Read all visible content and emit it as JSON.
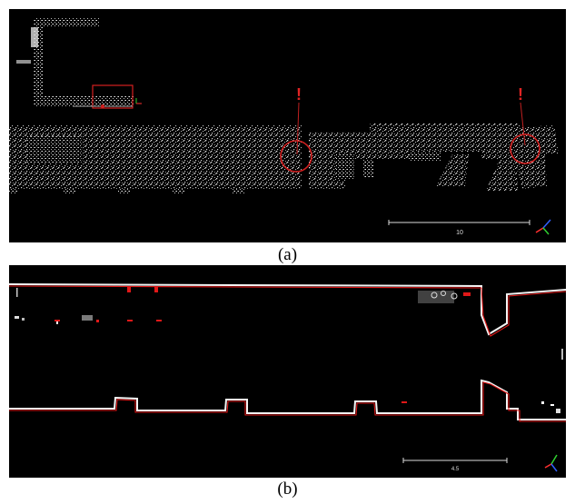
{
  "figure": {
    "captions": {
      "a": "(a)",
      "b": "(b)"
    },
    "panel_a": {
      "scale_bar_label": "10",
      "annotation_markers": [
        "!",
        "!"
      ],
      "colors": {
        "background": "#000000",
        "points": "#e6e6e6",
        "highlight": "#d42020",
        "axis_x": "#ff3030",
        "axis_y": "#30d030",
        "axis_z": "#3060ff"
      }
    },
    "panel_b": {
      "scale_bar_label": "4.5",
      "colors": {
        "background": "#000000",
        "points": "#ffffff",
        "overlay": "#e01818"
      }
    }
  }
}
